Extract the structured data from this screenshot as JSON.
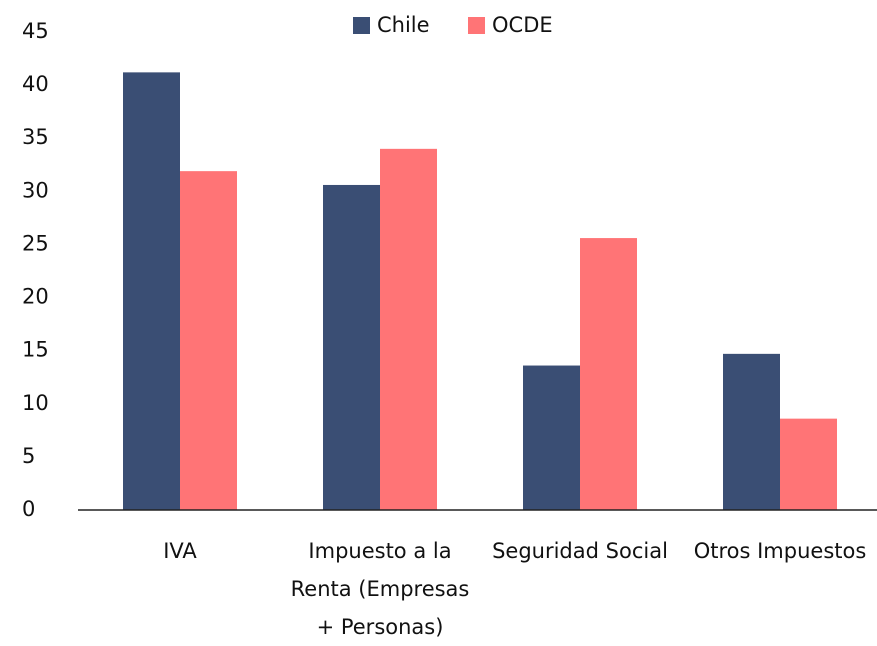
{
  "chart_data": {
    "type": "bar",
    "categories": [
      "IVA",
      "Impuesto a la Renta (Empresas + Personas)",
      "Seguridad Social",
      "Otros Impuestos"
    ],
    "series": [
      {
        "name": "Chile",
        "color": "#3a4e74",
        "values": [
          41.2,
          30.6,
          13.6,
          14.7
        ]
      },
      {
        "name": "OCDE",
        "color": "#ff7476",
        "values": [
          31.9,
          34.0,
          25.6,
          8.6
        ]
      }
    ],
    "ylim": [
      0,
      45
    ],
    "yticks": [
      0,
      5,
      10,
      15,
      20,
      25,
      30,
      35,
      40,
      45
    ],
    "grid": false,
    "legend": "top"
  }
}
